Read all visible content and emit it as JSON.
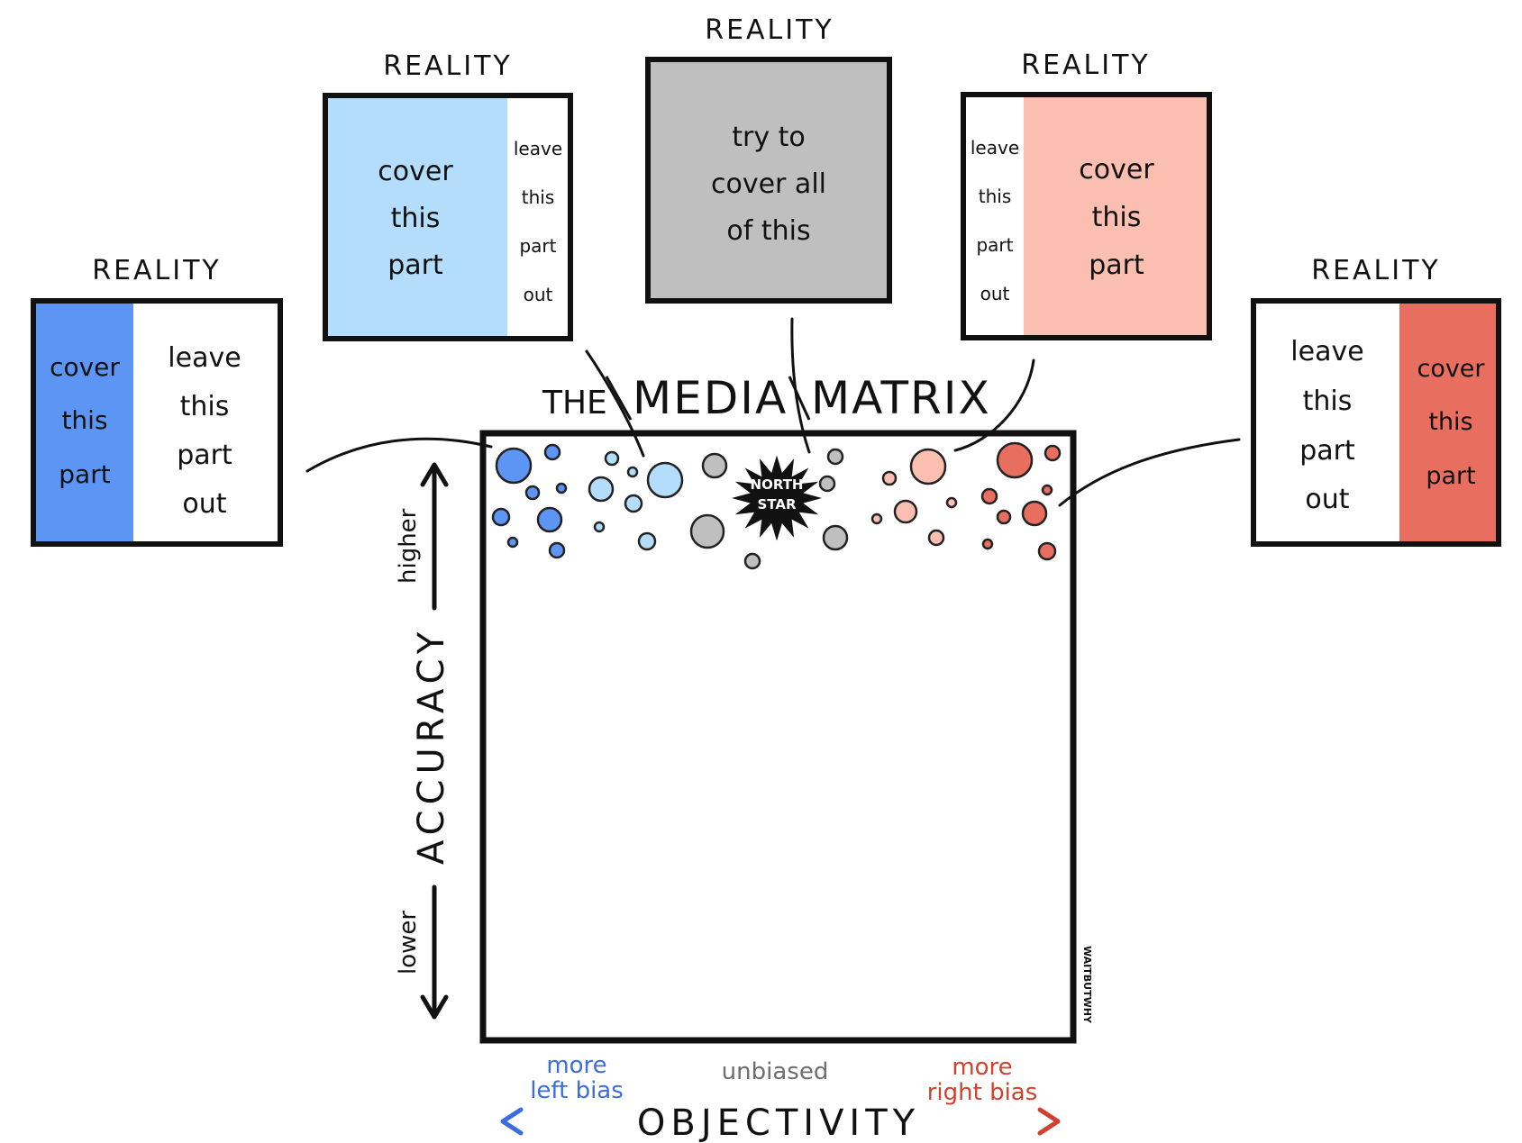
{
  "colors": {
    "left_strong": "#5d95f5",
    "left_light": "#b3ddfb",
    "neutral": "#bfbfbf",
    "right_light": "#fbbfb2",
    "right_strong": "#e86e5f",
    "arrow_left": "#3c6de0",
    "arrow_right": "#d2412e",
    "star": "#111111",
    "outline": "#111111"
  },
  "panels": [
    {
      "id": "far-left",
      "title": "REALITY",
      "cover_color": "#5d95f5",
      "cover_side": "left",
      "cover_lines": [
        "cover",
        "this",
        "part"
      ],
      "leave_lines": [
        "leave",
        "this",
        "part",
        "out"
      ]
    },
    {
      "id": "left",
      "title": "REALITY",
      "cover_color": "#b3ddfb",
      "cover_side": "left",
      "cover_lines": [
        "cover",
        "this",
        "part"
      ],
      "leave_lines": [
        "leave",
        "this",
        "part",
        "out"
      ]
    },
    {
      "id": "center",
      "title": "REALITY",
      "cover_color": "#bfbfbf",
      "cover_side": "full",
      "cover_lines": [
        "try  to",
        "cover  all",
        "of  this"
      ],
      "leave_lines": []
    },
    {
      "id": "right",
      "title": "REALITY",
      "cover_color": "#fbbfb2",
      "cover_side": "right",
      "cover_lines": [
        "cover",
        "this",
        "part"
      ],
      "leave_lines": [
        "leave",
        "this",
        "part",
        "out"
      ]
    },
    {
      "id": "far-right",
      "title": "REALITY",
      "cover_color": "#e86e5f",
      "cover_side": "right",
      "cover_lines": [
        "cover",
        "this",
        "part"
      ],
      "leave_lines": [
        "leave",
        "this",
        "part",
        "out"
      ]
    }
  ],
  "matrix": {
    "title_the": "THE",
    "title_media": "MEDIA",
    "title_matrix": "MATRIX",
    "north_star_lines": [
      "NORTH",
      "STAR"
    ],
    "credit": "WAITBUTWHY"
  },
  "y_axis": {
    "title": "ACCURACY",
    "higher": "higher",
    "lower": "lower"
  },
  "x_axis": {
    "title": "OBJECTIVITY",
    "left_lines": [
      "more",
      "left  bias"
    ],
    "center": "unbiased",
    "right_lines": [
      "more",
      "right  bias"
    ]
  }
}
